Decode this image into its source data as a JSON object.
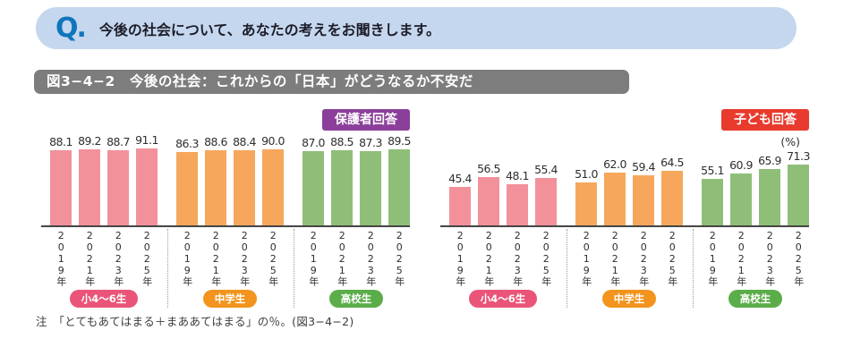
{
  "banner": {
    "q": "Q.",
    "text": "今後の社会について、あなたの考えをお聞きします。"
  },
  "figure_title": "図3−4−2　今後の社会：これからの「日本」がどうなるか不安だ",
  "note": "注　「とてもあてはまる＋まああてはまる」の％。(図3−4−2)",
  "colors": {
    "banner_bg": "#c5d7ee",
    "q_logo": "#1076bc",
    "title_bar_bg": "#7d7d7d",
    "axis": "#454545",
    "divider_dotted": "#9a9a9a"
  },
  "chart_data": [
    {
      "type": "bar",
      "respondent_badge": "保護者回答",
      "respondent_badge_color": "#8b3f9a",
      "categories": [
        "2019年",
        "2021年",
        "2023年",
        "2025年"
      ],
      "series": [
        {
          "name": "小4〜6生",
          "bar_color": "#f2919a",
          "badge_color": "#ea5478",
          "values": [
            88.1,
            89.2,
            88.7,
            91.1
          ]
        },
        {
          "name": "中学生",
          "bar_color": "#f6a75c",
          "badge_color": "#f2941d",
          "values": [
            86.3,
            88.6,
            88.4,
            90.0
          ]
        },
        {
          "name": "高校生",
          "bar_color": "#8fbe79",
          "badge_color": "#5bad4a",
          "values": [
            87.0,
            88.5,
            87.3,
            89.5
          ]
        }
      ],
      "ylim": [
        0,
        100
      ],
      "unit": "%",
      "unit_label": "",
      "value_labels": true,
      "x_tick_orientation": "vertical",
      "layout": "grouped-by-school-level, dotted dividers between groups, no y axis shown"
    },
    {
      "type": "bar",
      "respondent_badge": "子ども回答",
      "respondent_badge_color": "#e83a2d",
      "categories": [
        "2019年",
        "2021年",
        "2023年",
        "2025年"
      ],
      "series": [
        {
          "name": "小4〜6生",
          "bar_color": "#f2919a",
          "badge_color": "#ea5478",
          "values": [
            45.4,
            56.5,
            48.1,
            55.4
          ]
        },
        {
          "name": "中学生",
          "bar_color": "#f6a75c",
          "badge_color": "#f2941d",
          "values": [
            51.0,
            62.0,
            59.4,
            64.5
          ]
        },
        {
          "name": "高校生",
          "bar_color": "#8fbe79",
          "badge_color": "#5bad4a",
          "values": [
            55.1,
            60.9,
            65.9,
            71.3
          ]
        }
      ],
      "ylim": [
        0,
        100
      ],
      "unit": "%",
      "unit_label": "(%)",
      "value_labels": true,
      "x_tick_orientation": "vertical",
      "layout": "grouped-by-school-level, dotted dividers between groups, no y axis shown"
    }
  ]
}
